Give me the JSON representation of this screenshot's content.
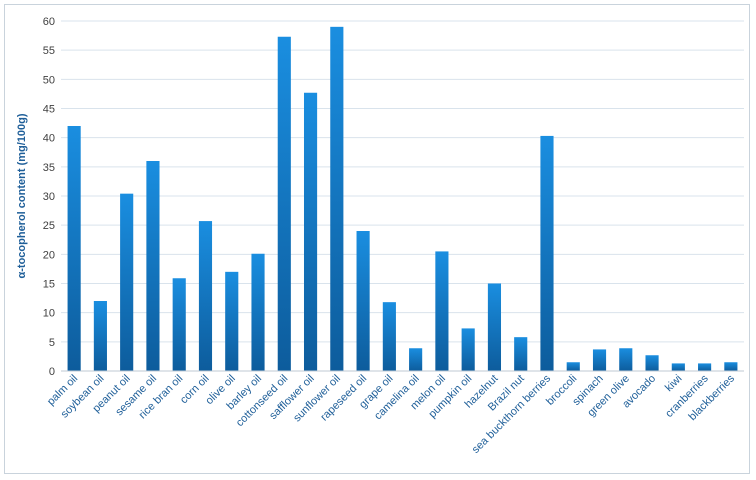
{
  "chart_data": {
    "type": "bar",
    "title": "",
    "xlabel": "",
    "ylabel": "α-tocopherol content (mg/100g)",
    "ylim": [
      0,
      60
    ],
    "yticks": [
      0,
      5,
      10,
      15,
      20,
      25,
      30,
      35,
      40,
      45,
      50,
      55,
      60
    ],
    "grid": true,
    "legend": "none",
    "bar_color_top": "#1a8ee0",
    "bar_color_bottom": "#0d5c9c",
    "categories": [
      "palm oil",
      "soybean oil",
      "peanut oil",
      "sesame oil",
      "rice bran oil",
      "corn oil",
      "olive oil",
      "barley oil",
      "cottonseed oil",
      "safflower oil",
      "sunflower oil",
      "rapeseed oil",
      "grape oil",
      "camelina oil",
      "melon oil",
      "pumpkin oil",
      "hazelnut",
      "Brazil nut",
      "sea buckthorn berries",
      "broccoli",
      "spinach",
      "green olive",
      "avocado",
      "kiwi",
      "cranberries",
      "blackberries"
    ],
    "values": [
      42,
      12,
      30.4,
      36,
      15.9,
      25.7,
      17,
      20.1,
      57.3,
      47.7,
      59,
      24,
      11.8,
      3.9,
      20.5,
      7.3,
      15,
      5.8,
      40.3,
      1.5,
      3.7,
      3.9,
      2.7,
      1.3,
      1.3,
      1.5
    ]
  }
}
